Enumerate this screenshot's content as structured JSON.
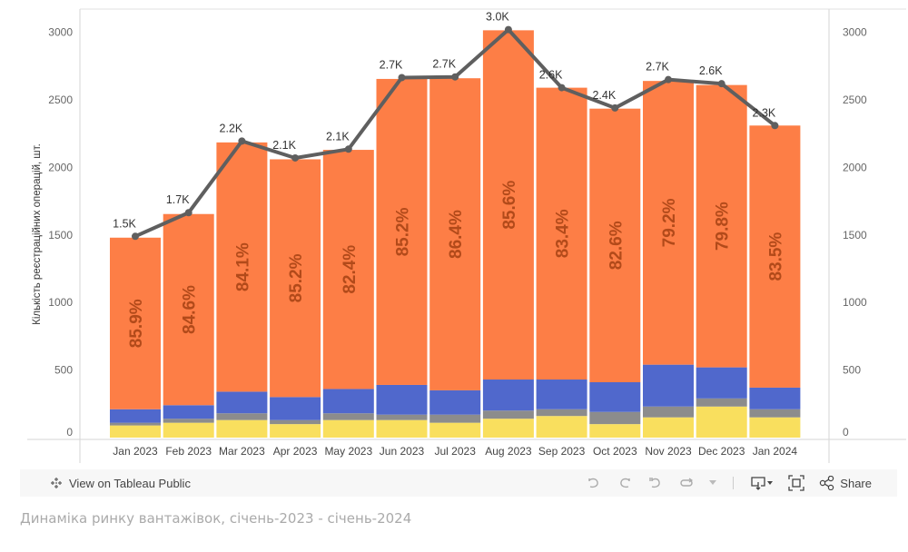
{
  "chart_data": {
    "type": "bar",
    "stacked": true,
    "title": "",
    "xlabel": "",
    "ylabel": "Кількість реєстраційних операцій, шт.",
    "ylim": [
      0,
      3100
    ],
    "yticks": [
      0,
      500,
      1000,
      1500,
      2000,
      2500,
      3000
    ],
    "grid": false,
    "categories": [
      "Jan 2023",
      "Feb 2023",
      "Mar 2023",
      "Apr 2023",
      "May 2023",
      "Jun 2023",
      "Jul 2023",
      "Aug 2023",
      "Sep 2023",
      "Oct 2023",
      "Nov 2023",
      "Dec 2023",
      "Jan 2024"
    ],
    "totals": [
      1480,
      1655,
      2185,
      2060,
      2130,
      2655,
      2660,
      3015,
      2590,
      2435,
      2640,
      2610,
      2310
    ],
    "series": [
      {
        "name": "yellow",
        "color": "#f9df5e",
        "values": [
          90,
          110,
          130,
          100,
          130,
          130,
          110,
          140,
          160,
          100,
          150,
          230,
          150
        ]
      },
      {
        "name": "gray",
        "color": "#8c8c8c",
        "values": [
          20,
          30,
          50,
          30,
          50,
          40,
          60,
          60,
          50,
          90,
          80,
          60,
          60
        ]
      },
      {
        "name": "blue",
        "color": "#5068cc",
        "values": [
          100,
          100,
          160,
          170,
          180,
          220,
          180,
          230,
          220,
          220,
          310,
          230,
          160
        ]
      },
      {
        "name": "orange",
        "color": "#fd7e46",
        "percent_labels": [
          "85.9%",
          "84.6%",
          "84.1%",
          "85.2%",
          "82.4%",
          "85.2%",
          "86.4%",
          "85.6%",
          "83.4%",
          "82.6%",
          "79.2%",
          "79.8%",
          "83.5%"
        ]
      }
    ],
    "line": {
      "name": "total",
      "color": "#5f5f5f",
      "values": [
        1490,
        1665,
        2195,
        2070,
        2135,
        2665,
        2670,
        3020,
        2590,
        2440,
        2650,
        2620,
        2310
      ],
      "labels": [
        "1.5K",
        "1.7K",
        "2.2K",
        "2.1K",
        "2.1K",
        "2.7K",
        "2.7K",
        "3.0K",
        "2.6K",
        "2.4K",
        "2.7K",
        "2.6K",
        "2.3K"
      ]
    },
    "right_axis_ticks": [
      0,
      500,
      1000,
      1500,
      2000,
      2500,
      3000
    ]
  },
  "toolbar": {
    "view_label": "View on Tableau Public",
    "share_label": "Share",
    "icons": [
      "tableau-logo-icon",
      "undo-icon",
      "redo-icon",
      "revert-icon",
      "refresh-icon",
      "dropdown-icon",
      "download-icon",
      "fullscreen-icon",
      "share-icon"
    ]
  },
  "caption": "Динаміка ринку вантажівок, січень-2023 - січень-2024"
}
